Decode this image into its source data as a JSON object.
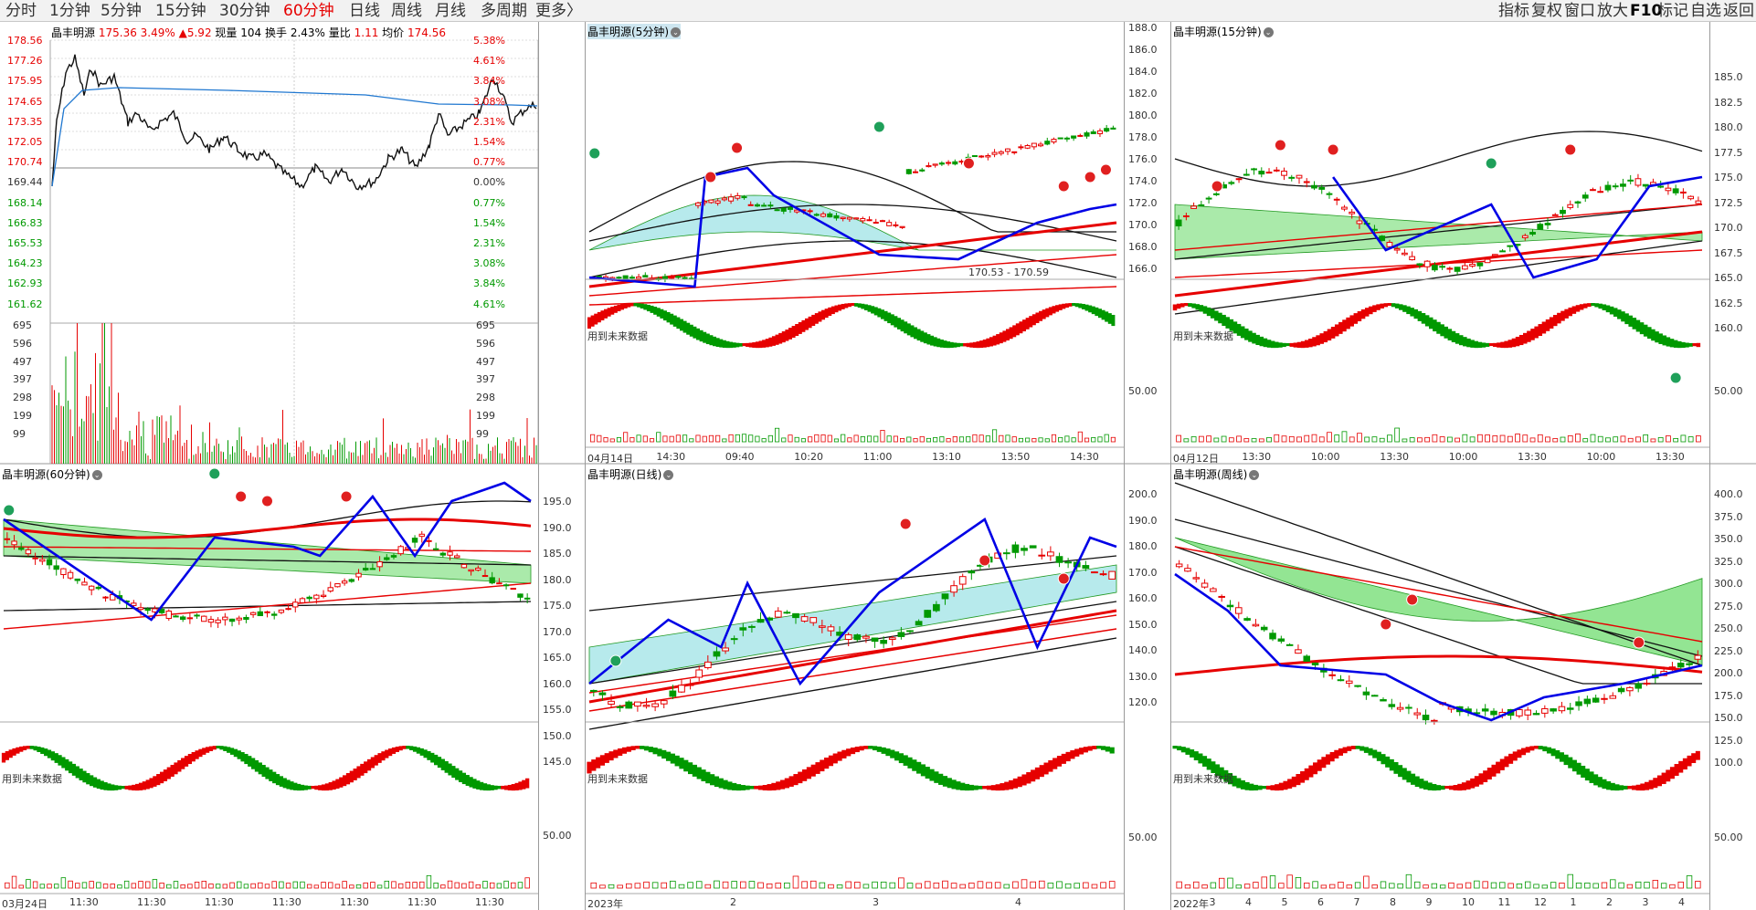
{
  "topbar": {
    "tabs": [
      {
        "id": "fs",
        "label": "分时",
        "active": false
      },
      {
        "id": "m1",
        "label": "1分钟",
        "active": false
      },
      {
        "id": "m5",
        "label": "5分钟",
        "active": false
      },
      {
        "id": "m15",
        "label": "15分钟",
        "active": false
      },
      {
        "id": "m30",
        "label": "30分钟",
        "active": false
      },
      {
        "id": "m60",
        "label": "60分钟",
        "active": true
      },
      {
        "id": "day",
        "label": "日线",
        "active": false
      },
      {
        "id": "week",
        "label": "周线",
        "active": false
      },
      {
        "id": "month",
        "label": "月线",
        "active": false
      },
      {
        "id": "multi",
        "label": "多周期",
        "active": false
      },
      {
        "id": "more",
        "label": "更多〉",
        "active": false
      }
    ],
    "tools": [
      "指标",
      "复权",
      "窗口",
      "放大",
      "F10",
      "标记",
      "自选",
      "返回"
    ]
  },
  "intraday": {
    "name": "晶丰明源",
    "price": "175.36",
    "pct": "3.49%",
    "change": "▲5.92",
    "vol_label": "现量",
    "vol": "104",
    "turnover_label": "换手",
    "turnover": "2.43%",
    "ratio_label": "量比",
    "ratio": "1.11",
    "avg_label": "均价",
    "avg": "174.56",
    "price_ticks": [
      "178.56",
      "177.26",
      "175.95",
      "174.65",
      "173.35",
      "172.05",
      "170.74",
      "169.44",
      "168.14",
      "166.83",
      "165.53",
      "164.23",
      "162.93",
      "161.62"
    ],
    "pct_ticks": [
      "5.38%",
      "4.61%",
      "3.84%",
      "3.08%",
      "2.31%",
      "1.54%",
      "0.77%",
      "0.00%",
      "0.77%",
      "1.54%",
      "2.31%",
      "3.08%",
      "3.84%",
      "4.61%"
    ],
    "vol_ticks": [
      "695",
      "596",
      "497",
      "397",
      "298",
      "199",
      "99"
    ]
  },
  "p5": {
    "title": "晶丰明源(5分钟)",
    "y_ticks": [
      "188.0",
      "186.0",
      "184.0",
      "182.0",
      "180.0",
      "178.0",
      "176.0",
      "174.0",
      "172.0",
      "170.0",
      "168.0",
      "166.0"
    ],
    "range_label": "170.53 - 170.59",
    "future_note": "用到未来数据",
    "osc_tick": "50.00",
    "x_labels": [
      "04月14日",
      "14:30",
      "09:40",
      "10:20",
      "11:00",
      "13:10",
      "13:50",
      "14:30"
    ]
  },
  "p15": {
    "title": "晶丰明源(15分钟)",
    "y_ticks": [
      "185.0",
      "182.5",
      "180.0",
      "177.5",
      "175.0",
      "172.5",
      "170.0",
      "167.5",
      "165.0",
      "162.5",
      "160.0"
    ],
    "future_note": "用到未来数据",
    "osc_tick": "50.00",
    "x_labels": [
      "04月12日",
      "13:30",
      "10:00",
      "13:30",
      "10:00",
      "13:30",
      "10:00",
      "13:30"
    ]
  },
  "p60": {
    "title": "晶丰明源(60分钟)",
    "future_note": "用到未来数据",
    "x_labels": [
      "03月24日",
      "11:30",
      "11:30",
      "11:30",
      "11:30",
      "11:30",
      "11:30",
      "11:30"
    ]
  },
  "pday": {
    "title": "晶丰明源(日线)",
    "y_ticks": [
      "195.0",
      "190.0",
      "185.0",
      "180.0",
      "175.0",
      "170.0",
      "165.0",
      "160.0",
      "155.0",
      "150.0",
      "145.0"
    ],
    "future_note": "用到未来数据",
    "osc_tick": "50.00",
    "x_labels": [
      "2023年",
      "2",
      "3",
      "4"
    ]
  },
  "pweek": {
    "title": "晶丰明源(周线)",
    "y_ticks": [
      "200.0",
      "190.0",
      "180.0",
      "170.0",
      "160.0",
      "150.0",
      "140.0",
      "130.0",
      "120.0"
    ],
    "y_ticks_right": [
      "400.0",
      "375.0",
      "350.0",
      "325.0",
      "300.0",
      "275.0",
      "250.0",
      "225.0",
      "200.0",
      "175.0",
      "150.0",
      "125.0",
      "100.0"
    ],
    "future_note": "用到未来数据",
    "osc_tick": "50.00",
    "x_labels": [
      "2022年",
      "3",
      "4",
      "5",
      "6",
      "7",
      "8",
      "9",
      "10",
      "11",
      "12",
      "1",
      "2",
      "3",
      "4"
    ]
  },
  "colors": {
    "up": "#e60000",
    "down": "#009900",
    "ma_blue": "#0000e6",
    "band_cyan": "#9fe3e6",
    "band_green": "#6fdc6f"
  }
}
